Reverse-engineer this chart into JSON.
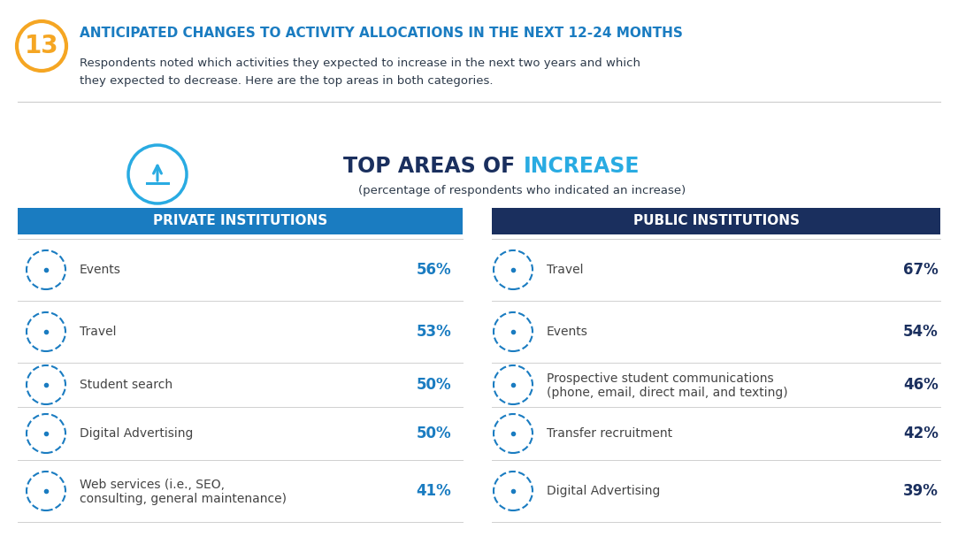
{
  "title_number": "13",
  "title_text": "ANTICIPATED CHANGES TO ACTIVITY ALLOCATIONS IN THE NEXT 12-24 MONTHS",
  "subtitle_line1": "Respondents noted which activities they expected to increase in the next two years and which",
  "subtitle_line2": "they expected to decrease. Here are the top areas in both categories.",
  "section_title_dark": "TOP AREAS OF ",
  "section_title_blue": "INCREASE",
  "section_subtitle": "(percentage of respondents who indicated an increase)",
  "private_header": "PRIVATE INSTITUTIONS",
  "public_header": "PUBLIC INSTITUTIONS",
  "private_color": "#1a7cc1",
  "public_color": "#1a2f5e",
  "header_text_color": "#ffffff",
  "title_color": "#1a7cc1",
  "number_color": "#f5a623",
  "private_pct_color": "#1a7cc1",
  "public_pct_color": "#1a2f5e",
  "body_text_color": "#2d3a4a",
  "body_text_light": "#444444",
  "background_color": "#ffffff",
  "arrow_color": "#29abe2",
  "section_dark_color": "#1a2f5e",
  "private_items": [
    {
      "label": "Events",
      "value": "56%"
    },
    {
      "label": "Travel",
      "value": "53%"
    },
    {
      "label": "Student search",
      "value": "50%"
    },
    {
      "label": "Digital Advertising",
      "value": "50%"
    },
    {
      "label": "Web services (i.e., SEO,\nconsulting, general maintenance)",
      "value": "41%"
    }
  ],
  "public_items": [
    {
      "label": "Travel",
      "value": "67%"
    },
    {
      "label": "Events",
      "value": "54%"
    },
    {
      "label": "Prospective student communications\n(phone, email, direct mail, and texting)",
      "value": "46%"
    },
    {
      "label": "Transfer recruitment",
      "value": "42%"
    },
    {
      "label": "Digital Advertising",
      "value": "39%"
    }
  ],
  "fig_width": 10.83,
  "fig_height": 6.33,
  "dpi": 100
}
